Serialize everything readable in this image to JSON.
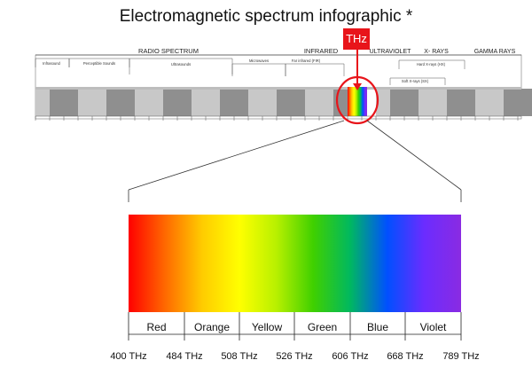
{
  "title": "Electromagnetic spectrum infographic *",
  "thz_badge": "THz",
  "bands": [
    {
      "label": "RADIO SPECTRUM"
    },
    {
      "label": "INFRARED"
    },
    {
      "label": "ULTRAVIOLET"
    },
    {
      "label": "X- RAYS"
    },
    {
      "label": "GAMMA RAYS"
    }
  ],
  "sub_bands": [
    {
      "label": "Infrasound"
    },
    {
      "label": "Perceptible Sounds"
    },
    {
      "label": "Ultrasounds"
    },
    {
      "label": "Microwaves"
    },
    {
      "label": "Far infrared (FIR)"
    },
    {
      "label": "Hard X-rays (HX)"
    },
    {
      "label": "Soft X-rays (SX)"
    }
  ],
  "colors": {
    "gray_dark": "#8f8f8f",
    "gray_light": "#c8c8c8",
    "highlight": "#e8141a"
  },
  "visible_spectrum": {
    "gradient_stops": [
      "#ff0000",
      "#ff6a00",
      "#ffcc00",
      "#ffff00",
      "#b8f000",
      "#3fd000",
      "#00b860",
      "#0050ff",
      "#6b2cff",
      "#8a2be2"
    ],
    "colors": [
      {
        "name": "Red"
      },
      {
        "name": "Orange"
      },
      {
        "name": "Yellow"
      },
      {
        "name": "Green"
      },
      {
        "name": "Blue"
      },
      {
        "name": "Violet"
      }
    ],
    "frequencies": [
      {
        "label": "400 THz"
      },
      {
        "label": "484 THz"
      },
      {
        "label": "508 THz"
      },
      {
        "label": "526 THz"
      },
      {
        "label": "606 THz"
      },
      {
        "label": "668 THz"
      },
      {
        "label": "789 THz"
      }
    ]
  }
}
